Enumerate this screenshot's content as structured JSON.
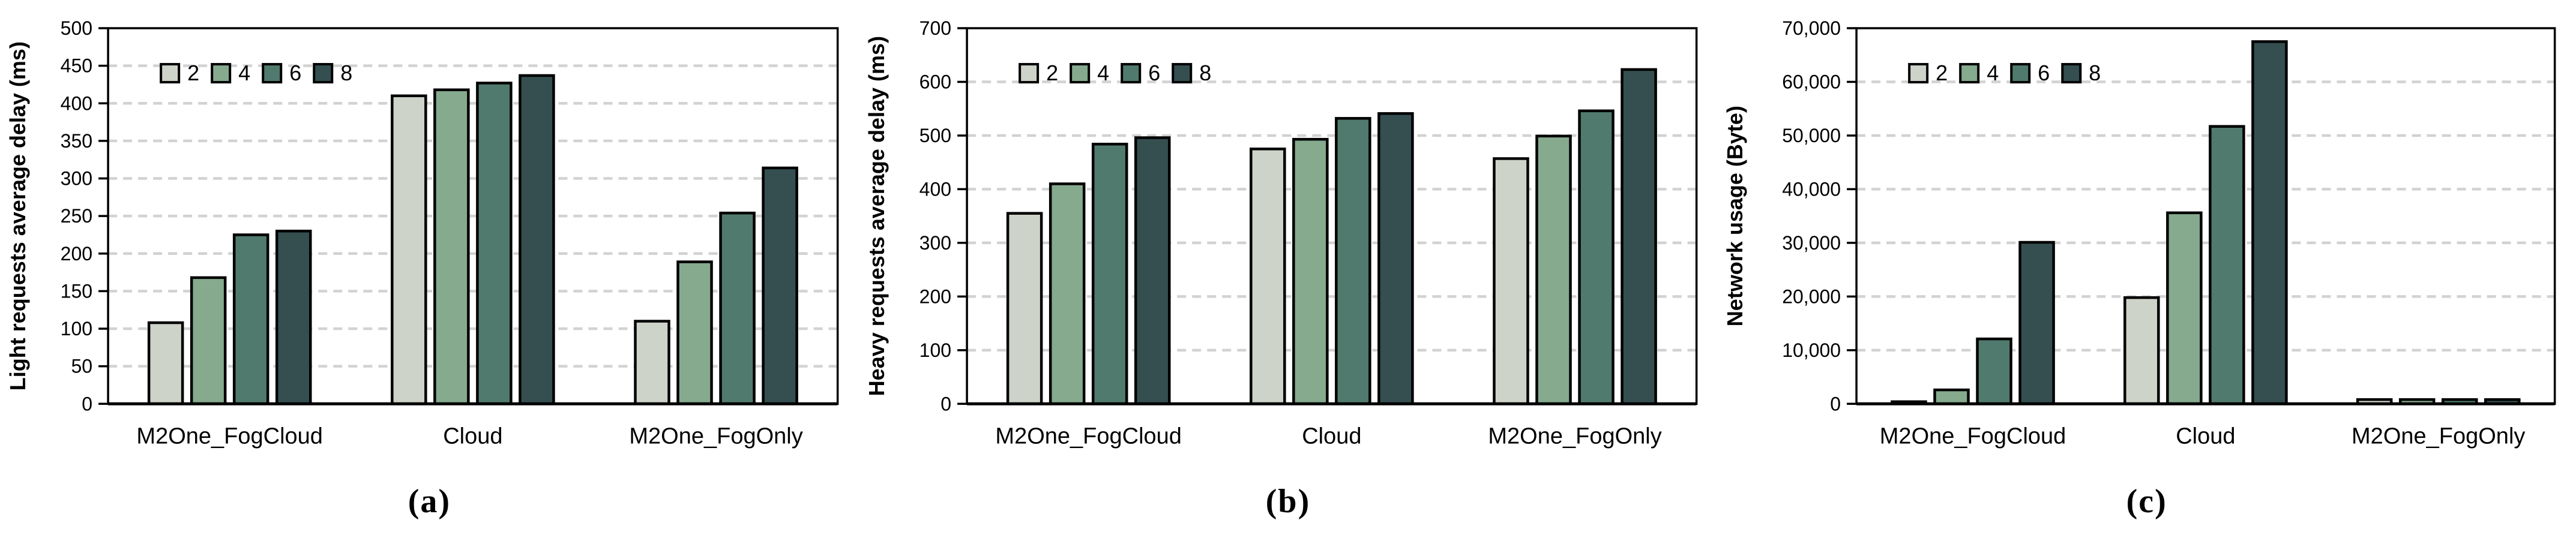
{
  "figure": {
    "series_colors": [
      "#cdd3c8",
      "#85aa8e",
      "#507a6e",
      "#354f50"
    ],
    "bar_border_color": "#000000",
    "grid_color": "#d2d2d2",
    "axis_color": "#000000",
    "background_color": "#ffffff",
    "legend_position": "top-left-inside",
    "grid_style": "horizontal-dashed"
  },
  "chart_data": [
    {
      "type": "bar",
      "caption": "(a)",
      "title": "",
      "xlabel": "",
      "ylabel": "Light requests average delay (ms)",
      "ylim": [
        0,
        500
      ],
      "ytick_step": 50,
      "ytick_labels": [
        "0",
        "50",
        "100",
        "150",
        "200",
        "250",
        "300",
        "350",
        "400",
        "450",
        "500"
      ],
      "categories": [
        "M2One_FogCloud",
        "Cloud",
        "M2One_FogOnly"
      ],
      "legend": [
        "2",
        "4",
        "6",
        "8"
      ],
      "series": [
        {
          "name": "2",
          "values": [
            108,
            410,
            110
          ]
        },
        {
          "name": "4",
          "values": [
            168,
            418,
            189
          ]
        },
        {
          "name": "6",
          "values": [
            225,
            427,
            254
          ]
        },
        {
          "name": "8",
          "values": [
            230,
            437,
            314
          ]
        }
      ]
    },
    {
      "type": "bar",
      "caption": "(b)",
      "title": "",
      "xlabel": "",
      "ylabel": "Heavy requests average delay (ms)",
      "ylim": [
        0,
        700
      ],
      "ytick_step": 100,
      "ytick_labels": [
        "0",
        "100",
        "200",
        "300",
        "400",
        "500",
        "600",
        "700"
      ],
      "categories": [
        "M2One_FogCloud",
        "Cloud",
        "M2One_FogOnly"
      ],
      "legend": [
        "2",
        "4",
        "6",
        "8"
      ],
      "series": [
        {
          "name": "2",
          "values": [
            355,
            475,
            457
          ]
        },
        {
          "name": "4",
          "values": [
            410,
            493,
            499
          ]
        },
        {
          "name": "6",
          "values": [
            484,
            532,
            546
          ]
        },
        {
          "name": "8",
          "values": [
            496,
            541,
            623
          ]
        }
      ]
    },
    {
      "type": "bar",
      "caption": "(c)",
      "title": "",
      "xlabel": "",
      "ylabel": "Network usage (Byte)",
      "ylim": [
        0,
        70000
      ],
      "ytick_step": 10000,
      "ytick_labels": [
        "0",
        "10,000",
        "20,000",
        "30,000",
        "40,000",
        "50,000",
        "60,000",
        "70,000"
      ],
      "categories": [
        "M2One_FogCloud",
        "Cloud",
        "M2One_FogOnly"
      ],
      "legend": [
        "2",
        "4",
        "6",
        "8"
      ],
      "series": [
        {
          "name": "2",
          "values": [
            400,
            19800,
            800
          ]
        },
        {
          "name": "4",
          "values": [
            2600,
            35600,
            800
          ]
        },
        {
          "name": "6",
          "values": [
            12100,
            51700,
            800
          ]
        },
        {
          "name": "8",
          "values": [
            30100,
            67500,
            800
          ]
        }
      ]
    }
  ]
}
